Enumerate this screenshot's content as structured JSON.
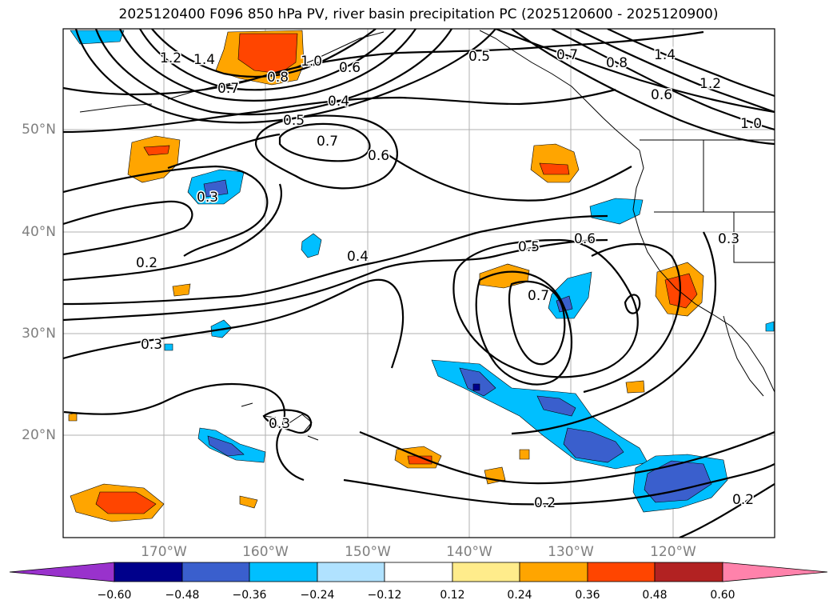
{
  "title": "2025120400 F096 850 hPa PV, river basin precipitation PC (2025120600 - 2025120900)",
  "lat_labels": [
    "50°N",
    "40°N",
    "30°N",
    "20°N"
  ],
  "lon_labels": [
    "170°W",
    "160°W",
    "150°W",
    "140°W",
    "130°W",
    "120°W"
  ],
  "contour_labels": [
    "1.2",
    "1.4",
    "1.0",
    "0.8",
    "0.7",
    "0.6",
    "0.5",
    "0.4",
    "0.5",
    "0.7",
    "0.6",
    "0.3",
    "0.2",
    "0.4",
    "0.5",
    "0.6",
    "0.7",
    "0.3",
    "0.3",
    "0.2",
    "0.2",
    "0.7",
    "0.8",
    "1.4",
    "1.2",
    "1.0",
    "0.6",
    "0.3"
  ],
  "colorbar": {
    "ticks": [
      "−0.60",
      "−0.48",
      "−0.36",
      "−0.24",
      "−0.12",
      "0.12",
      "0.24",
      "0.36",
      "0.48",
      "0.60"
    ],
    "colors": [
      "#9932cc",
      "#00008b",
      "#3a5fcd",
      "#00bfff",
      "#b0e2ff",
      "#ffffff",
      "#ffec8b",
      "#ffa500",
      "#ff4500",
      "#b22222",
      "#ff82ab"
    ]
  },
  "fill_colors": {
    "blue_light": "#00bfff",
    "blue_mid": "#3a5fcd",
    "blue_dark": "#00008b",
    "orange": "#ffa500",
    "red": "#ff4500"
  }
}
